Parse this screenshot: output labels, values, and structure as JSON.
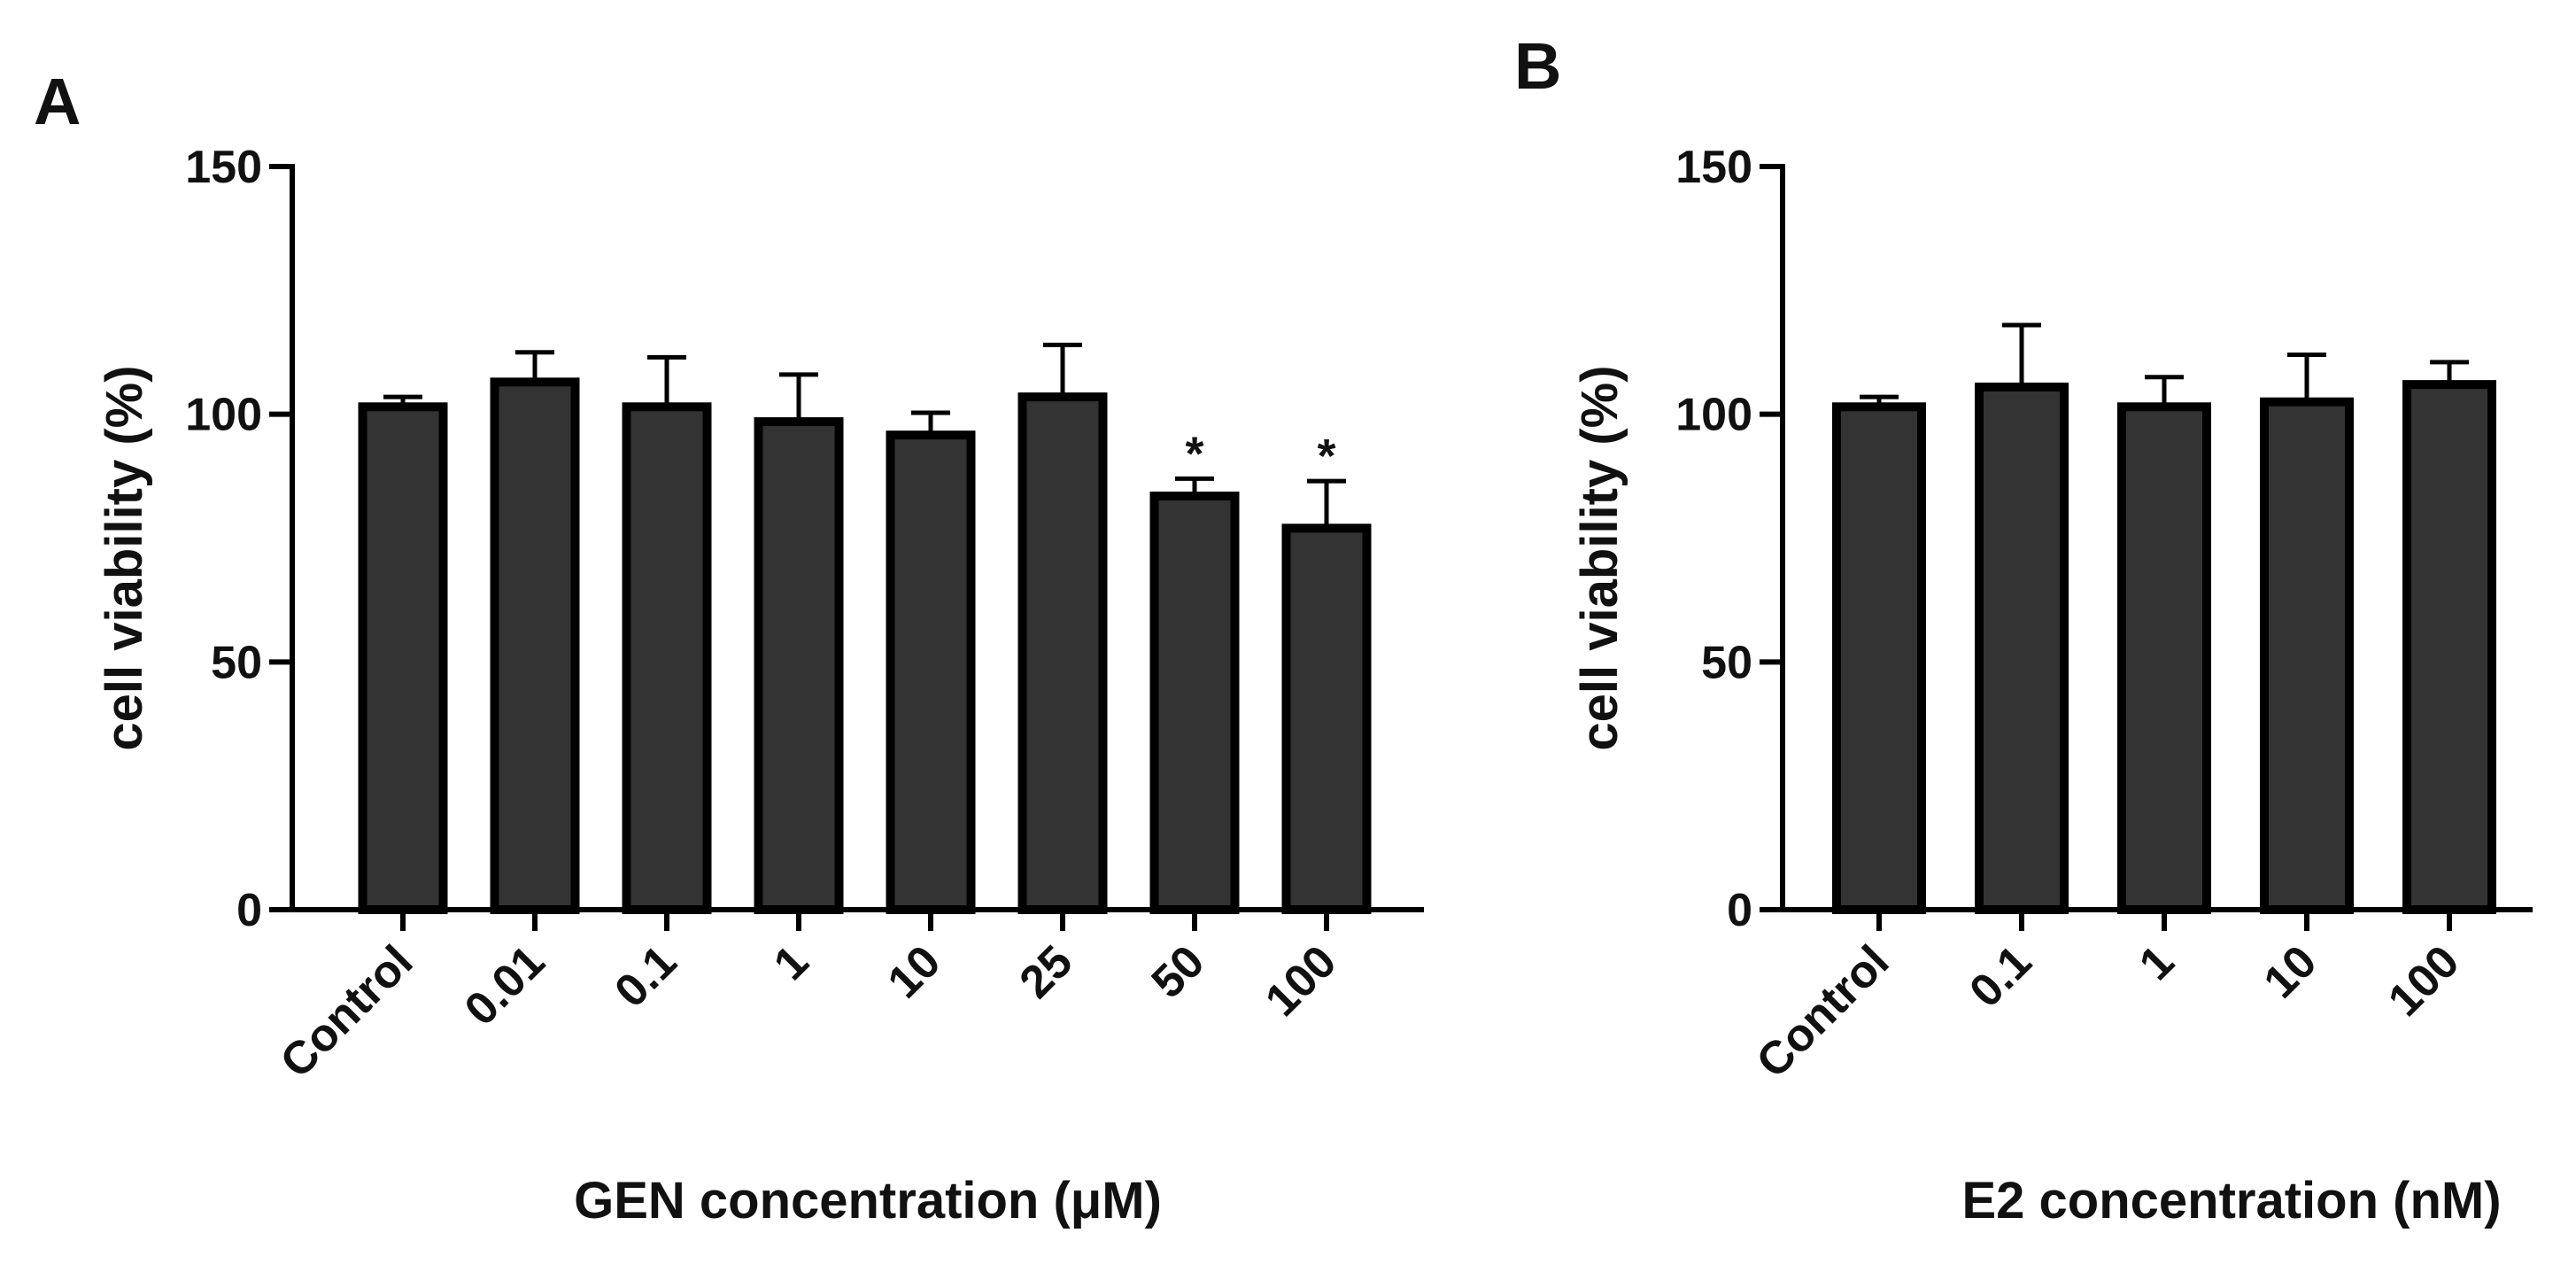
{
  "chart_data": [
    {
      "type": "bar",
      "panel": "A",
      "ylabel": "cell viability (%)",
      "xlabel": "GEN concentration (μM)",
      "ylim": [
        0,
        150
      ],
      "yticks": [
        "0",
        "50",
        "100",
        "150"
      ],
      "categories": [
        "Control",
        "0.01",
        "0.1",
        "1",
        "10",
        "25",
        "50",
        "100"
      ],
      "values": [
        101.5,
        106.5,
        101.5,
        98.5,
        95.8,
        103.5,
        83.5,
        77
      ],
      "errors": [
        2,
        6,
        10,
        9.5,
        4.5,
        10.5,
        3.5,
        9.5
      ],
      "significance": [
        "",
        "",
        "",
        "",
        "",
        "",
        "*",
        "*"
      ],
      "bar_color": "#333333"
    },
    {
      "type": "bar",
      "panel": "B",
      "ylabel": "cell viability (%)",
      "xlabel": "E2 concentration (nM)",
      "ylim": [
        0,
        150
      ],
      "yticks": [
        "0",
        "50",
        "100",
        "150"
      ],
      "categories": [
        "Control",
        "0.1",
        "1",
        "10",
        "100"
      ],
      "values": [
        101.5,
        105.5,
        101.5,
        102.5,
        106
      ],
      "errors": [
        2,
        12.5,
        6,
        9.5,
        4.5
      ],
      "significance": [
        "",
        "",
        "",
        "",
        ""
      ],
      "bar_color": "#333333"
    }
  ]
}
